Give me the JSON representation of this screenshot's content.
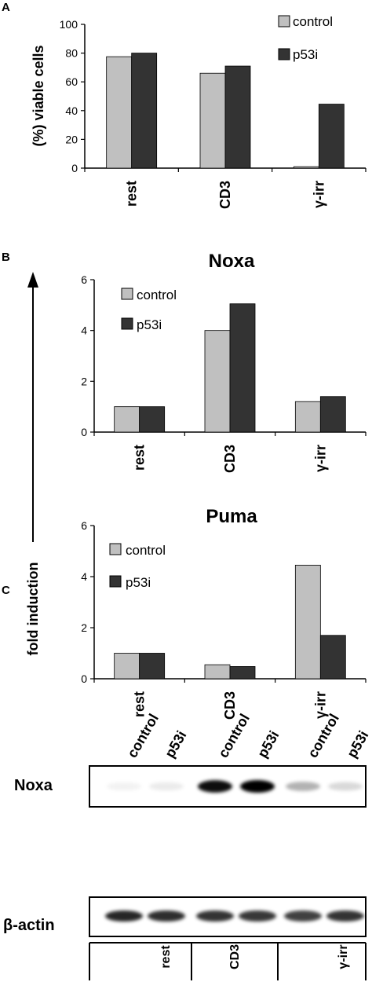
{
  "panels": {
    "a": "A",
    "b": "B",
    "c": "C"
  },
  "colors": {
    "control": "#c0c0c0",
    "p53i": "#333333"
  },
  "chart_data": [
    {
      "type": "bar",
      "title": "",
      "xlabel": "",
      "ylabel": "(%) viable cells",
      "categories": [
        "rest",
        "CD3",
        "γ-irr"
      ],
      "series": [
        {
          "name": "control",
          "values": [
            77.5,
            66,
            1
          ]
        },
        {
          "name": "p53i",
          "values": [
            80,
            71,
            44.5
          ]
        }
      ],
      "ylim": [
        0,
        100
      ],
      "yticks": [
        "0",
        "20",
        "40",
        "60",
        "80",
        "100"
      ],
      "legend": "top-right",
      "grid": false
    },
    {
      "type": "bar",
      "title": "Noxa",
      "xlabel": "",
      "ylabel": "fold induction",
      "categories": [
        "rest",
        "CD3",
        "γ-irr"
      ],
      "series": [
        {
          "name": "control",
          "values": [
            1.0,
            4.0,
            1.2
          ]
        },
        {
          "name": "p53i",
          "values": [
            1.0,
            5.05,
            1.4
          ]
        }
      ],
      "ylim": [
        0,
        6
      ],
      "yticks": [
        "0",
        "2",
        "4",
        "6"
      ],
      "legend": "top-left",
      "grid": false
    },
    {
      "type": "bar",
      "title": "Puma",
      "xlabel": "",
      "ylabel": "fold induction",
      "categories": [
        "rest",
        "CD3",
        "γ-irr"
      ],
      "series": [
        {
          "name": "control",
          "values": [
            1.0,
            0.55,
            4.45
          ]
        },
        {
          "name": "p53i",
          "values": [
            1.0,
            0.48,
            1.7
          ]
        }
      ],
      "ylim": [
        0,
        6
      ],
      "yticks": [
        "0",
        "2",
        "4",
        "6"
      ],
      "legend": "top-left",
      "grid": false
    }
  ],
  "blot": {
    "lanes": [
      "control",
      "p53i",
      "control",
      "p53i",
      "control",
      "p53i"
    ],
    "rows": [
      "Noxa",
      "β-actin"
    ],
    "groups": [
      "rest",
      "CD3",
      "γ-irr"
    ],
    "noxa_band_intensity": [
      0.05,
      0.08,
      0.95,
      1.0,
      0.3,
      0.15
    ],
    "actin_band_intensity": [
      0.85,
      0.82,
      0.8,
      0.78,
      0.75,
      0.8
    ]
  }
}
